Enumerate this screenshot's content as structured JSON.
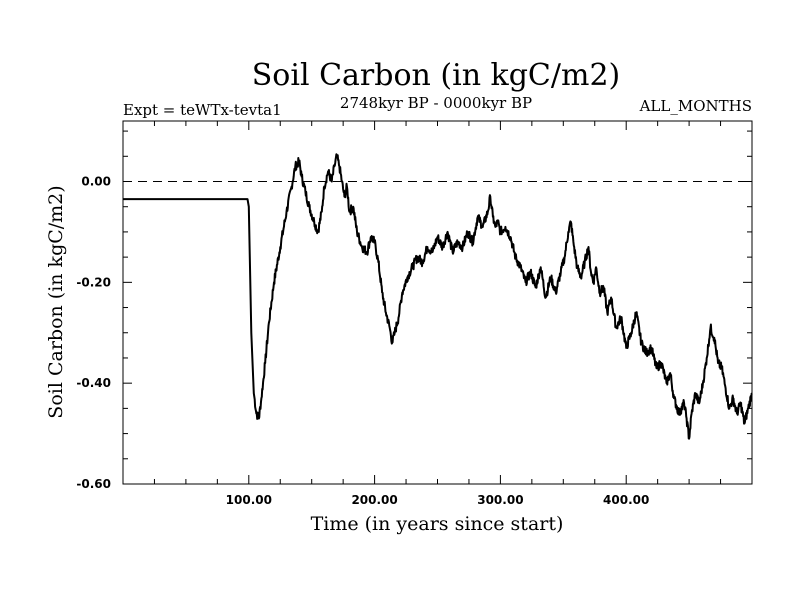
{
  "chart_data": {
    "type": "line",
    "title": "Soil Carbon (in kgC/m2)",
    "subtitle_left": "Expt = teWTx-tevta1",
    "subtitle_center": "2748kyr BP - 0000kyr BP",
    "subtitle_right": "ALL_MONTHS",
    "xlabel": "Time (in years since start)",
    "ylabel": "Soil Carbon (in kgC/m2)",
    "xlim": [
      0,
      500
    ],
    "ylim": [
      -0.6,
      0.12
    ],
    "x_ticks": [
      100,
      200,
      300,
      400
    ],
    "x_tick_labels": [
      "100.00",
      "200.00",
      "300.00",
      "400.00"
    ],
    "y_ticks": [
      0.0,
      -0.2,
      -0.4,
      -0.6
    ],
    "y_tick_labels": [
      "0.00",
      "-0.20",
      "-0.40",
      "-0.60"
    ],
    "reference_line": {
      "y": 0.0,
      "style": "dashed"
    },
    "series": [
      {
        "name": "Soil Carbon",
        "x": [
          0,
          99,
          100,
          102,
          104,
          106,
          108,
          110,
          113,
          116,
          120,
          125,
          130,
          134,
          137,
          140,
          142,
          145,
          148,
          152,
          155,
          158,
          160,
          163,
          166,
          168,
          170,
          172,
          174,
          176,
          178,
          180,
          183,
          186,
          190,
          194,
          197,
          200,
          203,
          206,
          209,
          212,
          214,
          216,
          219,
          222,
          226,
          230,
          234,
          238,
          242,
          246,
          250,
          254,
          258,
          262,
          266,
          270,
          274,
          278,
          282,
          286,
          290,
          292,
          294,
          296,
          298,
          300,
          304,
          308,
          312,
          316,
          320,
          324,
          328,
          332,
          336,
          340,
          344,
          348,
          351,
          354,
          356,
          358,
          361,
          364,
          367,
          370,
          372,
          374,
          376,
          379,
          382,
          385,
          388,
          392,
          396,
          400,
          404,
          408,
          412,
          416,
          420,
          424,
          428,
          432,
          435,
          438,
          442,
          446,
          448,
          450,
          452,
          455,
          458,
          461,
          464,
          467,
          470,
          473,
          476,
          479,
          482,
          485,
          488,
          491,
          494,
          497,
          500
        ],
        "y": [
          -0.035,
          -0.035,
          -0.05,
          -0.3,
          -0.42,
          -0.46,
          -0.47,
          -0.43,
          -0.36,
          -0.28,
          -0.2,
          -0.13,
          -0.06,
          -0.01,
          0.03,
          0.04,
          0.01,
          -0.02,
          -0.05,
          -0.08,
          -0.1,
          -0.06,
          -0.01,
          0.02,
          0.0,
          0.03,
          0.05,
          0.03,
          0.0,
          -0.03,
          -0.01,
          -0.06,
          -0.05,
          -0.1,
          -0.13,
          -0.14,
          -0.11,
          -0.12,
          -0.16,
          -0.22,
          -0.26,
          -0.29,
          -0.32,
          -0.3,
          -0.27,
          -0.22,
          -0.19,
          -0.17,
          -0.15,
          -0.16,
          -0.13,
          -0.14,
          -0.11,
          -0.13,
          -0.1,
          -0.14,
          -0.12,
          -0.13,
          -0.1,
          -0.12,
          -0.07,
          -0.09,
          -0.06,
          -0.03,
          -0.07,
          -0.09,
          -0.08,
          -0.1,
          -0.09,
          -0.11,
          -0.15,
          -0.17,
          -0.2,
          -0.18,
          -0.21,
          -0.17,
          -0.23,
          -0.19,
          -0.22,
          -0.18,
          -0.15,
          -0.1,
          -0.08,
          -0.12,
          -0.17,
          -0.19,
          -0.16,
          -0.13,
          -0.18,
          -0.2,
          -0.17,
          -0.22,
          -0.21,
          -0.26,
          -0.23,
          -0.29,
          -0.27,
          -0.33,
          -0.3,
          -0.26,
          -0.32,
          -0.34,
          -0.33,
          -0.37,
          -0.36,
          -0.4,
          -0.38,
          -0.43,
          -0.46,
          -0.44,
          -0.47,
          -0.51,
          -0.46,
          -0.42,
          -0.44,
          -0.4,
          -0.35,
          -0.29,
          -0.31,
          -0.36,
          -0.37,
          -0.41,
          -0.45,
          -0.43,
          -0.46,
          -0.44,
          -0.48,
          -0.45,
          -0.42
        ]
      }
    ]
  }
}
